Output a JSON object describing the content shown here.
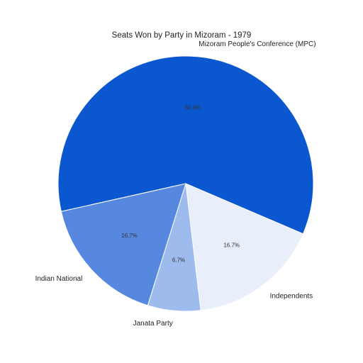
{
  "chart_data": {
    "type": "pie",
    "title": "Seats Won by Party in Mizoram - 1979",
    "slices": [
      {
        "label": "Mizoram People's Conference (MPC)",
        "value": 60.0,
        "pct_label": "60.0%",
        "color": "#0b57d0"
      },
      {
        "label": "Independents",
        "value": 16.7,
        "pct_label": "16.7%",
        "color": "#e8eefa"
      },
      {
        "label": "Janata Party",
        "value": 6.7,
        "pct_label": "6.7%",
        "color": "#9ebbee"
      },
      {
        "label": "Indian National",
        "value": 16.7,
        "pct_label": "16.7%",
        "color": "#5588de"
      }
    ]
  }
}
